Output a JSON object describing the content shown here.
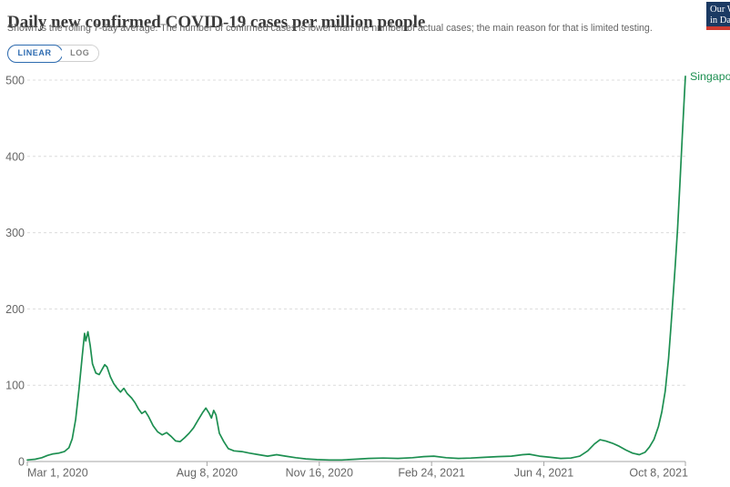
{
  "logo": {
    "line1": "Our World",
    "line2": "in Data",
    "bg_color": "#1b3a63",
    "bar_color": "#cf3b31"
  },
  "toggle": {
    "linear_label": "LINEAR",
    "log_label": "LOG",
    "active": "LINEAR",
    "active_color": "#2d6bb0"
  },
  "chart_data": {
    "type": "line",
    "title": "Daily new confirmed COVID-19 cases per million people",
    "subtitle": "Shown is the rolling 7-day average. The number of confirmed cases is lower than the number of actual cases; the main reason for that is limited testing.",
    "entity_label": "Singapore",
    "line_color": "#1d8f51",
    "axis_text_color": "#666666",
    "grid_color": "#dcdcdc",
    "axis_line_color": "#a5a5a5",
    "y_domain": [
      0,
      500
    ],
    "y_ticks": [
      0,
      100,
      200,
      300,
      400,
      500
    ],
    "x_domain": [
      "2020-03-01",
      "2021-10-08"
    ],
    "x_ticks": [
      {
        "date": "2020-03-01",
        "label": "Mar 1, 2020",
        "align": "start"
      },
      {
        "date": "2020-08-08",
        "label": "Aug 8, 2020",
        "align": "middle"
      },
      {
        "date": "2020-11-16",
        "label": "Nov 16, 2020",
        "align": "middle"
      },
      {
        "date": "2021-02-24",
        "label": "Feb 24, 2021",
        "align": "middle"
      },
      {
        "date": "2021-06-04",
        "label": "Jun 4, 2021",
        "align": "middle"
      },
      {
        "date": "2021-10-08",
        "label": "Oct 8, 2021",
        "align": "end"
      }
    ],
    "grid": true,
    "legend_position": "line-end",
    "series": [
      {
        "name": "Singapore",
        "color": "#1d8f51",
        "points": [
          [
            "2020-03-01",
            2
          ],
          [
            "2020-03-08",
            3
          ],
          [
            "2020-03-14",
            5
          ],
          [
            "2020-03-19",
            8
          ],
          [
            "2020-03-24",
            10
          ],
          [
            "2020-03-29",
            11
          ],
          [
            "2020-04-03",
            13
          ],
          [
            "2020-04-07",
            18
          ],
          [
            "2020-04-10",
            30
          ],
          [
            "2020-04-13",
            55
          ],
          [
            "2020-04-16",
            95
          ],
          [
            "2020-04-19",
            140
          ],
          [
            "2020-04-21",
            168
          ],
          [
            "2020-04-22",
            158
          ],
          [
            "2020-04-24",
            170
          ],
          [
            "2020-04-26",
            152
          ],
          [
            "2020-04-28",
            128
          ],
          [
            "2020-05-01",
            116
          ],
          [
            "2020-05-04",
            114
          ],
          [
            "2020-05-07",
            122
          ],
          [
            "2020-05-09",
            127
          ],
          [
            "2020-05-11",
            124
          ],
          [
            "2020-05-14",
            111
          ],
          [
            "2020-05-17",
            102
          ],
          [
            "2020-05-20",
            96
          ],
          [
            "2020-05-23",
            91
          ],
          [
            "2020-05-26",
            96
          ],
          [
            "2020-05-29",
            89
          ],
          [
            "2020-06-02",
            83
          ],
          [
            "2020-06-05",
            77
          ],
          [
            "2020-06-08",
            69
          ],
          [
            "2020-06-11",
            63
          ],
          [
            "2020-06-14",
            66
          ],
          [
            "2020-06-17",
            59
          ],
          [
            "2020-06-21",
            47
          ],
          [
            "2020-06-25",
            39
          ],
          [
            "2020-06-29",
            35
          ],
          [
            "2020-07-03",
            38
          ],
          [
            "2020-07-07",
            33
          ],
          [
            "2020-07-11",
            27
          ],
          [
            "2020-07-15",
            26
          ],
          [
            "2020-07-19",
            31
          ],
          [
            "2020-07-23",
            37
          ],
          [
            "2020-07-27",
            44
          ],
          [
            "2020-07-31",
            54
          ],
          [
            "2020-08-04",
            64
          ],
          [
            "2020-08-07",
            70
          ],
          [
            "2020-08-10",
            63
          ],
          [
            "2020-08-12",
            57
          ],
          [
            "2020-08-14",
            67
          ],
          [
            "2020-08-16",
            61
          ],
          [
            "2020-08-19",
            37
          ],
          [
            "2020-08-23",
            26
          ],
          [
            "2020-08-27",
            17
          ],
          [
            "2020-09-01",
            14
          ],
          [
            "2020-09-08",
            13
          ],
          [
            "2020-09-15",
            11
          ],
          [
            "2020-09-23",
            9
          ],
          [
            "2020-10-01",
            7
          ],
          [
            "2020-10-09",
            9
          ],
          [
            "2020-10-17",
            7
          ],
          [
            "2020-10-26",
            5
          ],
          [
            "2020-11-04",
            3.5
          ],
          [
            "2020-11-14",
            2.5
          ],
          [
            "2020-11-25",
            2
          ],
          [
            "2020-12-06",
            2
          ],
          [
            "2020-12-18",
            3
          ],
          [
            "2020-12-30",
            4
          ],
          [
            "2021-01-12",
            4.5
          ],
          [
            "2021-01-25",
            4
          ],
          [
            "2021-02-07",
            5
          ],
          [
            "2021-02-17",
            6.5
          ],
          [
            "2021-02-26",
            7
          ],
          [
            "2021-03-09",
            5
          ],
          [
            "2021-03-20",
            4
          ],
          [
            "2021-03-31",
            4.5
          ],
          [
            "2021-04-12",
            5.5
          ],
          [
            "2021-04-24",
            6.5
          ],
          [
            "2021-05-06",
            7
          ],
          [
            "2021-05-16",
            9
          ],
          [
            "2021-05-22",
            9.5
          ],
          [
            "2021-05-31",
            7
          ],
          [
            "2021-06-10",
            5.5
          ],
          [
            "2021-06-19",
            4
          ],
          [
            "2021-06-28",
            4.5
          ],
          [
            "2021-07-06",
            7
          ],
          [
            "2021-07-13",
            14
          ],
          [
            "2021-07-19",
            23
          ],
          [
            "2021-07-24",
            28.5
          ],
          [
            "2021-07-29",
            27
          ],
          [
            "2021-08-04",
            24
          ],
          [
            "2021-08-10",
            20
          ],
          [
            "2021-08-16",
            15
          ],
          [
            "2021-08-22",
            11
          ],
          [
            "2021-08-28",
            9
          ],
          [
            "2021-09-02",
            12
          ],
          [
            "2021-09-06",
            19
          ],
          [
            "2021-09-10",
            29
          ],
          [
            "2021-09-14",
            46
          ],
          [
            "2021-09-17",
            65
          ],
          [
            "2021-09-20",
            92
          ],
          [
            "2021-09-23",
            135
          ],
          [
            "2021-09-25",
            175
          ],
          [
            "2021-09-27",
            215
          ],
          [
            "2021-09-29",
            258
          ],
          [
            "2021-10-01",
            305
          ],
          [
            "2021-10-03",
            360
          ],
          [
            "2021-10-05",
            420
          ],
          [
            "2021-10-07",
            478
          ],
          [
            "2021-10-08",
            505
          ]
        ]
      }
    ]
  }
}
